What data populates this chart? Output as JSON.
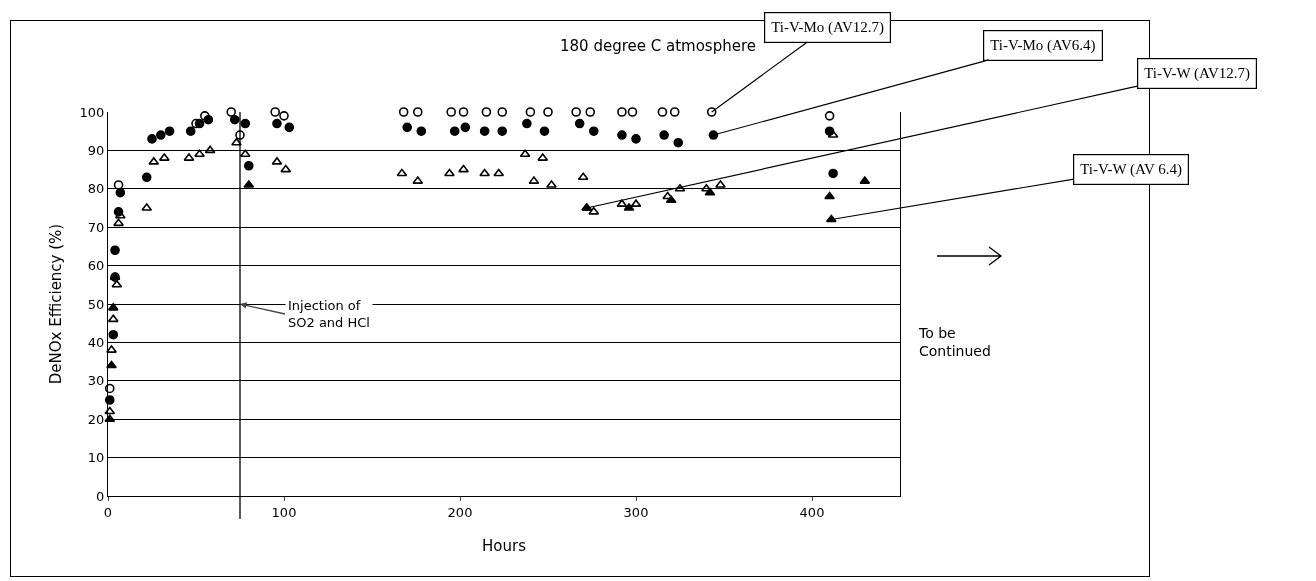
{
  "chart_data": {
    "type": "scatter",
    "title": "180 degree C atmosphere",
    "xlabel": "Hours",
    "ylabel": "DeNOx Efficiency (%)",
    "xlim": [
      0,
      450
    ],
    "xticks": [
      0,
      100,
      200,
      300,
      400
    ],
    "ylim": [
      0,
      100
    ],
    "yticks": [
      0,
      10,
      20,
      30,
      40,
      50,
      60,
      70,
      80,
      90,
      100
    ],
    "grid": "y",
    "series": [
      {
        "color": "#000000",
        "marker": "circle-open",
        "x": [
          1,
          4,
          6,
          50,
          55,
          70,
          75,
          95,
          100,
          168,
          176,
          195,
          202,
          215,
          224,
          240,
          250,
          266,
          274,
          292,
          298,
          315,
          322,
          343,
          410
        ],
        "values": [
          28,
          57,
          81,
          97,
          99,
          100,
          94,
          100,
          99,
          100,
          100,
          100,
          100,
          100,
          100,
          100,
          100,
          100,
          100,
          100,
          100,
          100,
          100,
          100,
          99
        ]
      },
      {
        "color": "#000000",
        "marker": "circle",
        "x": [
          1,
          3,
          4,
          6,
          7,
          22,
          25,
          30,
          35,
          47,
          52,
          57,
          72,
          78,
          80,
          96,
          103,
          170,
          178,
          197,
          203,
          214,
          224,
          238,
          248,
          268,
          276,
          292,
          300,
          316,
          324,
          344,
          410,
          412
        ],
        "values": [
          25,
          42,
          64,
          74,
          79,
          83,
          93,
          94,
          95,
          95,
          97,
          98,
          98,
          97,
          86,
          97,
          96,
          96,
          95,
          95,
          96,
          95,
          95,
          97,
          95,
          97,
          95,
          94,
          93,
          94,
          92,
          94,
          95,
          84
        ]
      },
      {
        "color": "#000000",
        "marker": "triangle-open",
        "x": [
          1,
          2,
          3,
          5,
          6,
          7,
          22,
          26,
          32,
          46,
          52,
          58,
          73,
          78,
          96,
          101,
          167,
          176,
          194,
          202,
          214,
          222,
          237,
          242,
          247,
          252,
          270,
          272,
          276,
          292,
          300,
          318,
          325,
          340,
          348,
          412
        ],
        "values": [
          22,
          38,
          46,
          55,
          71,
          73,
          75,
          87,
          88,
          88,
          89,
          90,
          92,
          89,
          87,
          85,
          84,
          82,
          84,
          85,
          84,
          84,
          89,
          82,
          88,
          81,
          83,
          75,
          74,
          76,
          76,
          78,
          80,
          80,
          81,
          94
        ]
      },
      {
        "color": "#000000",
        "marker": "triangle",
        "x": [
          1,
          2,
          3,
          4,
          80,
          272,
          296,
          320,
          342,
          410,
          411,
          430
        ],
        "values": [
          20,
          34,
          49,
          57,
          81,
          75,
          75,
          77,
          79,
          78,
          72,
          82
        ]
      }
    ],
    "ref_lines": [
      {
        "axis": "x",
        "value": 75,
        "label": "Injection of\nSO2 and HCl"
      }
    ],
    "annotations": [
      {
        "text": "Ti-V-Mo (AV12.7)",
        "x": 343,
        "y": 100
      },
      {
        "text": "Ti-V-Mo (AV6.4)",
        "x": 344,
        "y": 94
      },
      {
        "text": "Ti-V-W (AV12.7)",
        "x": 272,
        "y": 75
      },
      {
        "text": "Ti-V-W (AV 6.4)",
        "x": 411,
        "y": 72
      },
      "To be\nContinued"
    ]
  }
}
